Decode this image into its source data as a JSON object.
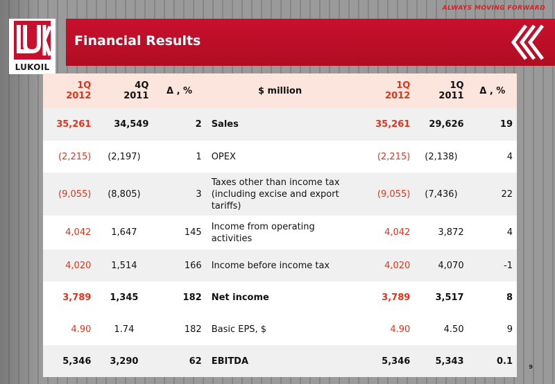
{
  "header": {
    "tagline": "ALWAYS MOVING FORWARD",
    "title": "Financial Results",
    "logo_text": "LUKOIL",
    "brand_color": "#c8102e"
  },
  "table": {
    "columns": [
      "1Q\n2012",
      "4Q\n2011",
      "Δ , %",
      "$ million",
      "1Q\n2012",
      "1Q\n2011",
      "Δ , %"
    ],
    "rows": [
      {
        "q1_2012": "35,261",
        "q4_2011": "34,549",
        "delta_q": "2",
        "label": "Sales",
        "q1_2012_b": "35,261",
        "q1_2011": "29,626",
        "delta_y": "19"
      },
      {
        "q1_2012": "(2,215)",
        "q4_2011": "(2,197)",
        "delta_q": "1",
        "label": "OPEX",
        "q1_2012_b": "(2,215)",
        "q1_2011": "(2,138)",
        "delta_y": "4"
      },
      {
        "q1_2012": "(9,055)",
        "q4_2011": "(8,805)",
        "delta_q": "3",
        "label": "Taxes other than income tax (including excise and export tariffs)",
        "q1_2012_b": "(9,055)",
        "q1_2011": "(7,436)",
        "delta_y": "22"
      },
      {
        "q1_2012": "4,042",
        "q4_2011": "1,647",
        "delta_q": "145",
        "label": "Income from operating activities",
        "q1_2012_b": "4,042",
        "q1_2011": "3,872",
        "delta_y": "4"
      },
      {
        "q1_2012": "4,020",
        "q4_2011": "1,514",
        "delta_q": "166",
        "label": "Income before income tax",
        "q1_2012_b": "4,020",
        "q1_2011": "4,070",
        "delta_y": "-1"
      },
      {
        "q1_2012": "3,789",
        "q4_2011": "1,345",
        "delta_q": "182",
        "label": "Net income",
        "q1_2012_b": "3,789",
        "q1_2011": "3,517",
        "delta_y": "8"
      },
      {
        "q1_2012": "4.90",
        "q4_2011": "1.74",
        "delta_q": "182",
        "label": "Basic EPS, $",
        "q1_2012_b": "4.90",
        "q1_2011": "4.50",
        "delta_y": "9"
      },
      {
        "q1_2012": "5,346",
        "q4_2011": "3,290",
        "delta_q": "62",
        "label": "EBITDA",
        "q1_2012_b": "5,346",
        "q1_2011": "5,343",
        "delta_y": "0.1"
      }
    ]
  },
  "page_number": "9"
}
